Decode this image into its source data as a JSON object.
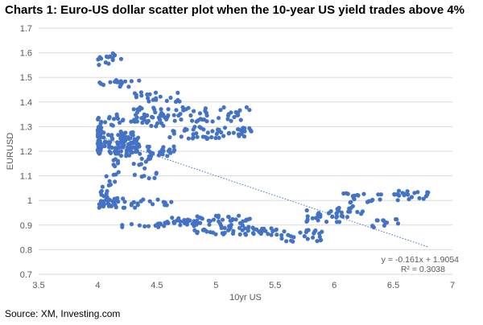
{
  "header": {
    "title": "Charts 1: Euro-US dollar scatter plot when the 10-year US yield trades above 4%"
  },
  "footer": {
    "source": "Source: XM, Investing.com"
  },
  "chart_data": {
    "type": "scatter",
    "title": "",
    "xlabel": "10yr US",
    "ylabel": "EURUSD",
    "xlim": [
      3.5,
      7
    ],
    "ylim": [
      0.7,
      1.7
    ],
    "x_ticks": [
      "3.5",
      "4",
      "4.5",
      "5",
      "5.5",
      "6",
      "6.5",
      "7"
    ],
    "y_ticks": [
      "0.7",
      "0.8",
      "0.9",
      "1",
      "1.1",
      "1.2",
      "1.3",
      "1.4",
      "1.5",
      "1.6",
      "1.7"
    ],
    "grid": "horizontal",
    "marker_color": "#4472C4",
    "trendline": {
      "type": "linear",
      "slope": -0.161,
      "intercept": 1.9054,
      "x_range": [
        4.0,
        6.8
      ],
      "color": "#4472C4",
      "equation": "y = -0.161x + 1.9054",
      "r_squared": "R² = 0.3038"
    },
    "clusters": [
      {
        "x": [
          4.0,
          4.03
        ],
        "y": [
          1.19,
          1.3
        ],
        "n": 70
      },
      {
        "x": [
          4.02,
          4.35
        ],
        "y": [
          1.21,
          1.28
        ],
        "n": 70
      },
      {
        "x": [
          4.1,
          4.65
        ],
        "y": [
          1.18,
          1.22
        ],
        "n": 50
      },
      {
        "x": [
          4.3,
          5.3
        ],
        "y": [
          1.32,
          1.38
        ],
        "n": 70
      },
      {
        "x": [
          4.6,
          5.3
        ],
        "y": [
          1.25,
          1.3
        ],
        "n": 55
      },
      {
        "x": [
          4.0,
          4.6
        ],
        "y": [
          1.3,
          1.35
        ],
        "n": 40
      },
      {
        "x": [
          4.0,
          4.2
        ],
        "y": [
          1.55,
          1.6
        ],
        "n": 14
      },
      {
        "x": [
          4.0,
          4.35
        ],
        "y": [
          1.46,
          1.49
        ],
        "n": 18
      },
      {
        "x": [
          4.3,
          4.7
        ],
        "y": [
          1.4,
          1.44
        ],
        "n": 20
      },
      {
        "x": [
          4.1,
          4.5
        ],
        "y": [
          1.08,
          1.18
        ],
        "n": 25
      },
      {
        "x": [
          4.0,
          4.15
        ],
        "y": [
          1.0,
          1.1
        ],
        "n": 15
      },
      {
        "x": [
          4.0,
          4.35
        ],
        "y": [
          0.97,
          1.01
        ],
        "n": 35
      },
      {
        "x": [
          4.35,
          4.65
        ],
        "y": [
          0.98,
          1.01
        ],
        "n": 10
      },
      {
        "x": [
          4.2,
          4.7
        ],
        "y": [
          0.89,
          0.91
        ],
        "n": 12
      },
      {
        "x": [
          4.5,
          4.8
        ],
        "y": [
          0.9,
          0.93
        ],
        "n": 20
      },
      {
        "x": [
          4.8,
          5.3
        ],
        "y": [
          0.86,
          0.94
        ],
        "n": 65
      },
      {
        "x": [
          5.2,
          5.55
        ],
        "y": [
          0.86,
          0.89
        ],
        "n": 25
      },
      {
        "x": [
          5.55,
          5.9
        ],
        "y": [
          0.83,
          0.88
        ],
        "n": 25
      },
      {
        "x": [
          5.75,
          6.05
        ],
        "y": [
          0.91,
          0.96
        ],
        "n": 20
      },
      {
        "x": [
          6.0,
          6.25
        ],
        "y": [
          0.93,
          0.98
        ],
        "n": 20
      },
      {
        "x": [
          6.05,
          6.4
        ],
        "y": [
          0.99,
          1.03
        ],
        "n": 20
      },
      {
        "x": [
          6.2,
          6.55
        ],
        "y": [
          0.89,
          0.93
        ],
        "n": 12
      },
      {
        "x": [
          6.5,
          6.8
        ],
        "y": [
          1.0,
          1.04
        ],
        "n": 22
      }
    ]
  }
}
